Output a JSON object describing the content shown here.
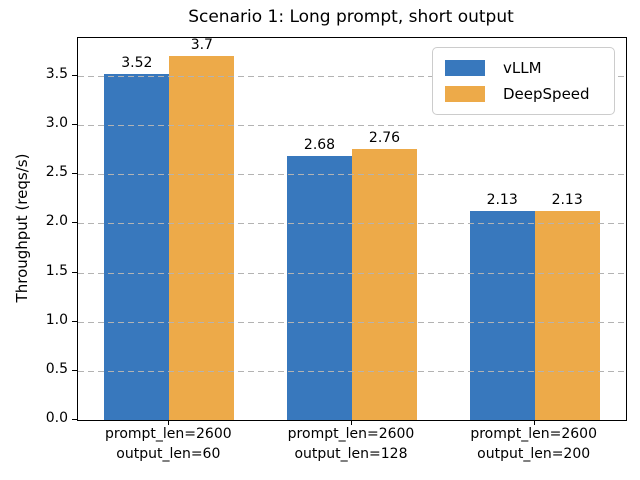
{
  "chart_data": {
    "type": "bar",
    "title": "Scenario 1: Long prompt, short output",
    "xlabel": "",
    "ylabel": "Throughput (reqs/s)",
    "categories": [
      [
        "prompt_len=2600",
        "output_len=60"
      ],
      [
        "prompt_len=2600",
        "output_len=128"
      ],
      [
        "prompt_len=2600",
        "output_len=200"
      ]
    ],
    "series": [
      {
        "name": "vLLM",
        "color": "#3878bd",
        "values": [
          3.52,
          2.68,
          2.13
        ]
      },
      {
        "name": "DeepSpeed",
        "color": "#edaa49",
        "values": [
          3.7,
          2.76,
          2.13
        ]
      }
    ],
    "value_labels": [
      [
        "3.52",
        "2.68",
        "2.13"
      ],
      [
        "3.7",
        "2.76",
        "2.13"
      ]
    ],
    "ylim": [
      0,
      3.885
    ],
    "yticks": [
      0.0,
      0.5,
      1.0,
      1.5,
      2.0,
      2.5,
      3.0,
      3.5
    ],
    "ytick_labels": [
      "0.0",
      "0.5",
      "1.0",
      "1.5",
      "2.0",
      "2.5",
      "3.0",
      "3.5"
    ],
    "grid": "horizontal dashed, drawn over bars",
    "legend_position": "upper right",
    "legend_entries": [
      "vLLM",
      "DeepSpeed"
    ],
    "colors": {
      "vllm": "#3878bd",
      "deepspeed": "#edaa49",
      "grid": "#b3b3b3",
      "spine": "#000000",
      "background": "#ffffff"
    }
  }
}
